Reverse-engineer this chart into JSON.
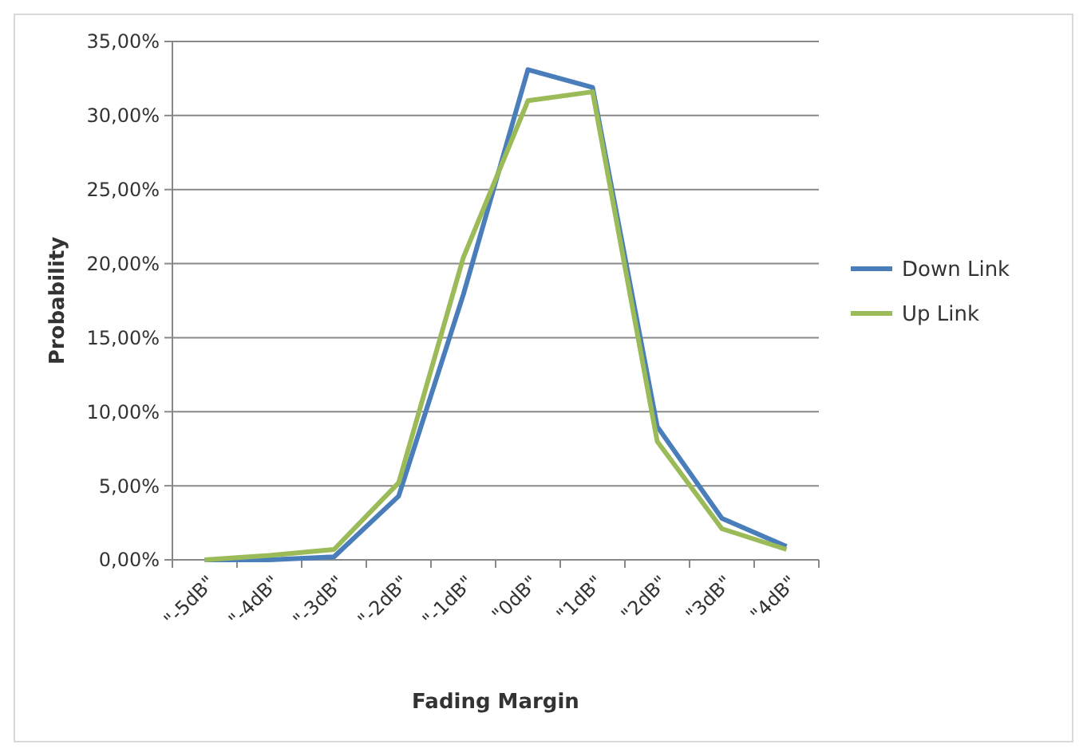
{
  "chart_data": {
    "type": "line",
    "xlabel": "Fading Margin",
    "ylabel": "Probability",
    "categories": [
      "\"-5dB\"",
      "\"-4dB\"",
      "\"-3dB\"",
      "\"-2dB\"",
      "\"-1dB\"",
      "\"0dB\"",
      "\"1dB\"",
      "\"2dB\"",
      "\"3dB\"",
      "\"4dB\""
    ],
    "series": [
      {
        "name": "Down Link",
        "color": "#4a7ebb",
        "values": [
          0,
          0,
          0.2,
          4.3,
          17.9,
          33.1,
          31.9,
          9.0,
          2.8,
          0.9
        ]
      },
      {
        "name": "Up Link",
        "color": "#9bbb59",
        "values": [
          0,
          0.3,
          0.7,
          5.2,
          20.4,
          31.0,
          31.6,
          8.0,
          2.1,
          0.7
        ]
      }
    ],
    "ylim": [
      0,
      35
    ],
    "yticks": [
      {
        "value": 0,
        "label": "0,00%"
      },
      {
        "value": 5,
        "label": "5,00%"
      },
      {
        "value": 10,
        "label": "10,00%"
      },
      {
        "value": 15,
        "label": "15,00%"
      },
      {
        "value": 20,
        "label": "20,00%"
      },
      {
        "value": 25,
        "label": "25,00%"
      },
      {
        "value": 30,
        "label": "30,00%"
      },
      {
        "value": 35,
        "label": "35,00%"
      }
    ],
    "grid": "y",
    "legend": "right",
    "marker": "none",
    "line_style": "solid"
  }
}
